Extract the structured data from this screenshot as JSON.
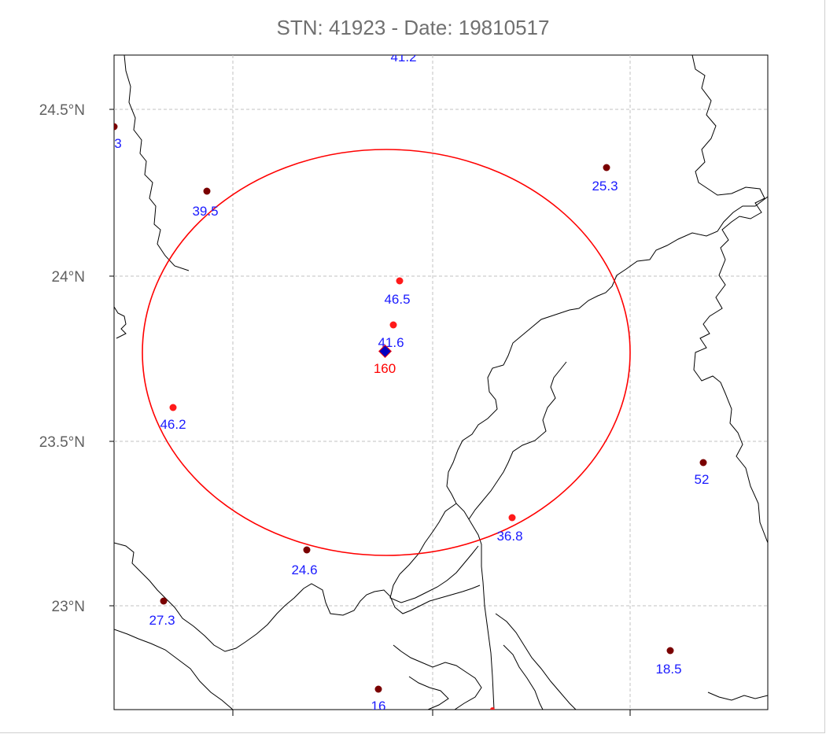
{
  "title": "STN: 41923 - Date: 19810517",
  "axis": {
    "lat_labels": [
      "24.5°N",
      "24°N",
      "23.5°N",
      "23°N"
    ]
  },
  "colors": {
    "station_dark": "#7a0000",
    "station_bright": "#ff1a1a",
    "value_label": "#1a1aff",
    "center_label": "#ff0000",
    "circle": "#ff0000",
    "center_marker": "#0000c0",
    "grid": "#c0c0c0",
    "coast": "#000000"
  },
  "center": {
    "label": "160"
  },
  "stations": [
    {
      "label": "41.2",
      "kind": "dark"
    },
    {
      "label": "3",
      "kind": "dark"
    },
    {
      "label": "39.5",
      "kind": "dark"
    },
    {
      "label": "25.3",
      "kind": "dark"
    },
    {
      "label": "46.5",
      "kind": "bright"
    },
    {
      "label": "41.6",
      "kind": "bright"
    },
    {
      "label": "46.2",
      "kind": "bright"
    },
    {
      "label": "52",
      "kind": "dark"
    },
    {
      "label": "36.8",
      "kind": "bright"
    },
    {
      "label": "24.6",
      "kind": "dark"
    },
    {
      "label": "27.3",
      "kind": "dark"
    },
    {
      "label": "18.5",
      "kind": "dark"
    },
    {
      "label": "16",
      "kind": "dark"
    }
  ]
}
